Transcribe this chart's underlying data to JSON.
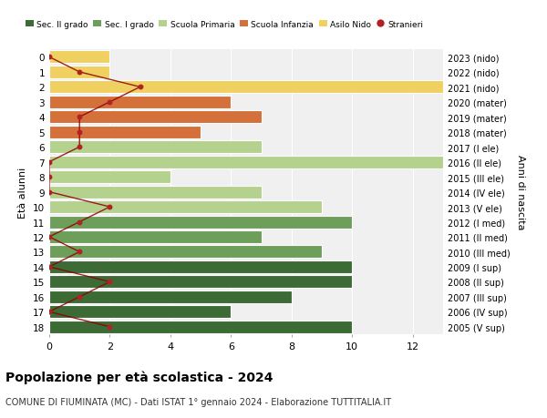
{
  "ages": [
    18,
    17,
    16,
    15,
    14,
    13,
    12,
    11,
    10,
    9,
    8,
    7,
    6,
    5,
    4,
    3,
    2,
    1,
    0
  ],
  "right_labels": [
    "2005 (V sup)",
    "2006 (IV sup)",
    "2007 (III sup)",
    "2008 (II sup)",
    "2009 (I sup)",
    "2010 (III med)",
    "2011 (II med)",
    "2012 (I med)",
    "2013 (V ele)",
    "2014 (IV ele)",
    "2015 (III ele)",
    "2016 (II ele)",
    "2017 (I ele)",
    "2018 (mater)",
    "2019 (mater)",
    "2020 (mater)",
    "2021 (nido)",
    "2022 (nido)",
    "2023 (nido)"
  ],
  "bar_values": [
    10,
    6,
    8,
    10,
    10,
    9,
    7,
    10,
    9,
    7,
    4,
    13,
    7,
    5,
    7,
    6,
    13,
    2,
    2
  ],
  "bar_colors": [
    "#3d6b35",
    "#3d6b35",
    "#3d6b35",
    "#3d6b35",
    "#3d6b35",
    "#6d9e5a",
    "#6d9e5a",
    "#6d9e5a",
    "#b5d18e",
    "#b5d18e",
    "#b5d18e",
    "#b5d18e",
    "#b5d18e",
    "#d4713a",
    "#d4713a",
    "#d4713a",
    "#f0d060",
    "#f0d060",
    "#f0d060"
  ],
  "stranieri_x": [
    2,
    0,
    1,
    2,
    0,
    1,
    0,
    1,
    2,
    0,
    0,
    0,
    1,
    1,
    1,
    2,
    3,
    1,
    0
  ],
  "legend_labels": [
    "Sec. II grado",
    "Sec. I grado",
    "Scuola Primaria",
    "Scuola Infanzia",
    "Asilo Nido",
    "Stranieri"
  ],
  "legend_colors": [
    "#3d6b35",
    "#6d9e5a",
    "#b5d18e",
    "#d4713a",
    "#f0d060",
    "#b22222"
  ],
  "ylabel_left": "Età alunni",
  "ylabel_right": "Anni di nascita",
  "title": "Popolazione per età scolastica - 2024",
  "subtitle": "COMUNE DI FIUMINATA (MC) - Dati ISTAT 1° gennaio 2024 - Elaborazione TUTTITALIA.IT",
  "xlim": [
    0,
    13
  ],
  "background_color": "#ffffff",
  "bar_background": "#f0f0f0"
}
